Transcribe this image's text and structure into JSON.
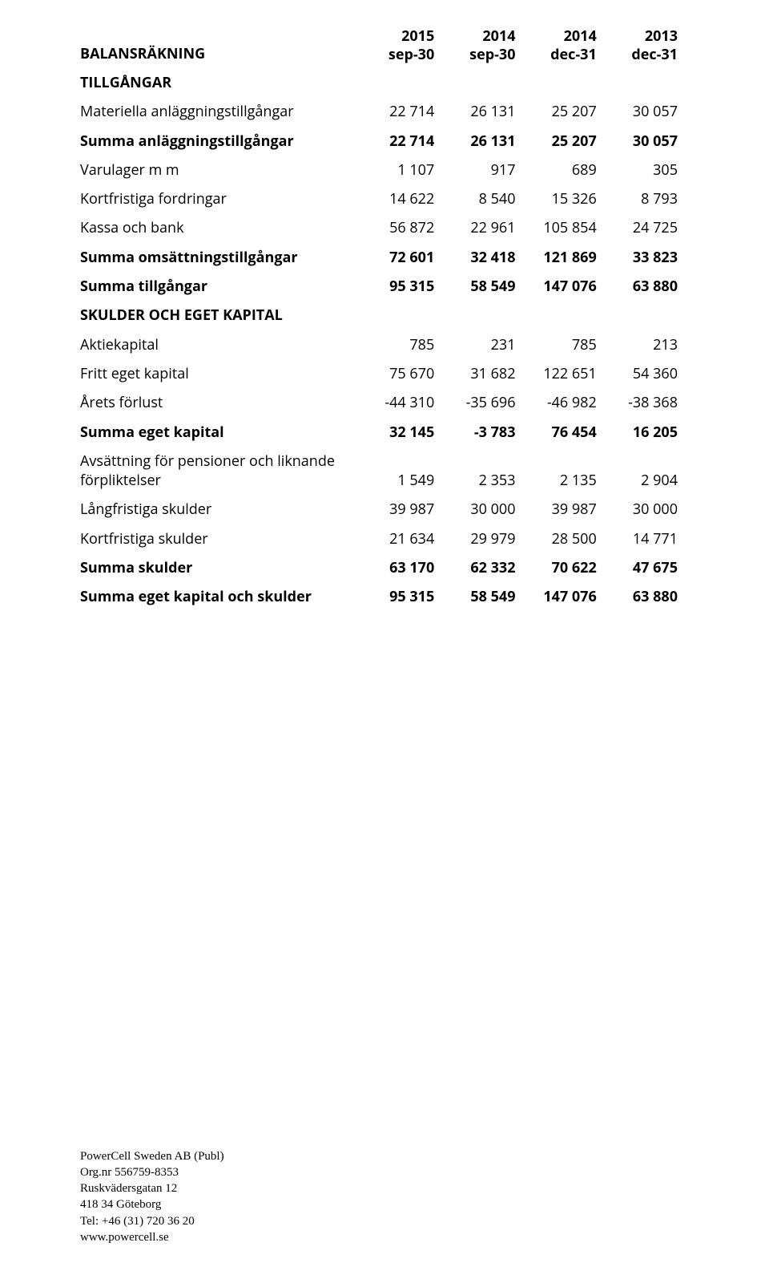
{
  "colors": {
    "background": "#ffffff",
    "text": "#000000"
  },
  "table": {
    "header": {
      "title": "BALANSRÄKNING",
      "cols": [
        {
          "year": "2015",
          "date": "sep-30"
        },
        {
          "year": "2014",
          "date": "sep-30"
        },
        {
          "year": "2014",
          "date": "dec-31"
        },
        {
          "year": "2013",
          "date": "dec-31"
        }
      ]
    },
    "sections": {
      "tillgangar_title": "TILLGÅNGAR",
      "skulder_title": "SKULDER OCH EGET KAPITAL"
    },
    "rows": {
      "r1": {
        "label": "Materiella anläggningstillgångar",
        "c": [
          "22 714",
          "26 131",
          "25 207",
          "30 057"
        ]
      },
      "r2": {
        "label": "Summa anläggningstillgångar",
        "c": [
          "22 714",
          "26 131",
          "25 207",
          "30 057"
        ]
      },
      "r3": {
        "label": "Varulager m m",
        "c": [
          "1 107",
          "917",
          "689",
          "305"
        ]
      },
      "r4": {
        "label": "Kortfristiga fordringar",
        "c": [
          "14 622",
          "8 540",
          "15 326",
          "8 793"
        ]
      },
      "r5": {
        "label": "Kassa och bank",
        "c": [
          "56 872",
          "22 961",
          "105 854",
          "24 725"
        ]
      },
      "r6": {
        "label": "Summa omsättningstillgångar",
        "c": [
          "72 601",
          "32 418",
          "121 869",
          "33 823"
        ]
      },
      "r7": {
        "label": "Summa tillgångar",
        "c": [
          "95 315",
          "58 549",
          "147 076",
          "63 880"
        ]
      },
      "r8": {
        "label": "Aktiekapital",
        "c": [
          "785",
          "231",
          "785",
          "213"
        ]
      },
      "r9": {
        "label": "Fritt eget kapital",
        "c": [
          "75 670",
          "31 682",
          "122 651",
          "54 360"
        ]
      },
      "r10": {
        "label": "Årets förlust",
        "c": [
          "-44 310",
          "-35 696",
          "-46 982",
          "-38 368"
        ]
      },
      "r11": {
        "label": "Summa eget kapital",
        "c": [
          "32 145",
          "-3 783",
          "76 454",
          "16 205"
        ]
      },
      "r12": {
        "label": "Avsättning för pensioner och liknande förpliktelser",
        "c": [
          "1 549",
          "2 353",
          "2 135",
          "2 904"
        ]
      },
      "r13": {
        "label": "Långfristiga skulder",
        "c": [
          "39 987",
          "30 000",
          "39 987",
          "30 000"
        ]
      },
      "r14": {
        "label": "Kortfristiga skulder",
        "c": [
          "21 634",
          "29 979",
          "28 500",
          "14 771"
        ]
      },
      "r15": {
        "label": "Summa skulder",
        "c": [
          "63 170",
          "62 332",
          "70 622",
          "47 675"
        ]
      },
      "r16": {
        "label": "Summa eget kapital och skulder",
        "c": [
          "95 315",
          "58 549",
          "147 076",
          "63 880"
        ]
      }
    }
  },
  "footer": {
    "line1": "PowerCell Sweden AB (Publ)",
    "line2": "Org.nr 556759-8353",
    "line3": "Ruskvädersgatan 12",
    "line4": "418 34 Göteborg",
    "line5": "Tel: +46 (31) 720 36 20",
    "line6": "www.powercell.se"
  }
}
